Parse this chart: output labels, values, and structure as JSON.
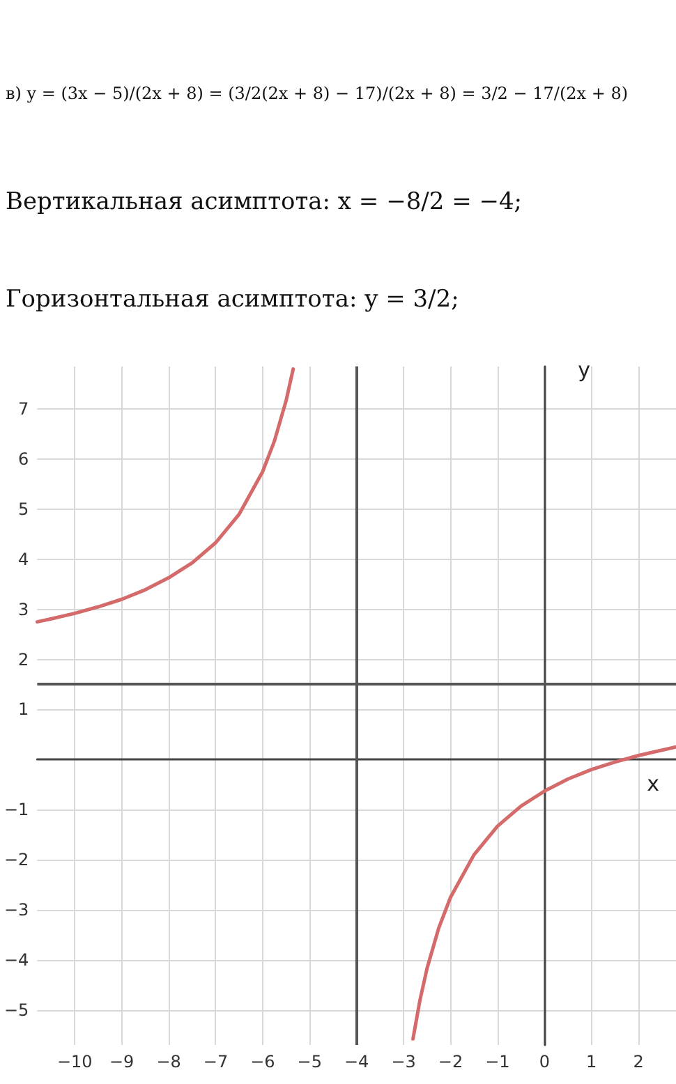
{
  "chart_data": {
    "type": "line",
    "xlabel": "x",
    "ylabel": "y",
    "annotations": [
      "в) y = (3x − 5)/(2x + 8) = (3/2(2x + 8) − 17)/(2x + 8) = 3/2 − 17/(2x + 8)",
      "Вертикальная асимптота: x = −8/2 = −4;",
      "Горизонтальная асимптота: y = 3/2;"
    ],
    "series": [
      {
        "color": "#d46a6a",
        "x": [
          -10.8,
          -10.5,
          -10,
          -9.5,
          -9,
          -8.5,
          -8,
          -7.5,
          -7,
          -6.5,
          -6,
          -5.75,
          -5.5,
          -5.35
        ],
        "values": [
          2.75,
          2.81,
          2.92,
          3.05,
          3.2,
          3.39,
          3.63,
          3.93,
          4.33,
          4.9,
          5.75,
          6.36,
          7.17,
          7.8
        ]
      },
      {
        "color": "#d46a6a",
        "x": [
          -2.8,
          -2.65,
          -2.5,
          -2.25,
          -2,
          -1.5,
          -1,
          -0.5,
          0,
          0.5,
          1,
          1.5,
          2,
          2.8
        ],
        "values": [
          -5.58,
          -4.8,
          -4.17,
          -3.36,
          -2.75,
          -1.9,
          -1.33,
          -0.93,
          -0.63,
          -0.39,
          -0.2,
          -0.05,
          0.08,
          0.25
        ]
      }
    ],
    "xlim": [
      -10.8,
      2.8
    ],
    "ylim": [
      -5.7,
      7.85
    ],
    "xticks": [
      -10,
      -9,
      -8,
      -7,
      -6,
      -5,
      -4,
      -3,
      -2,
      -1,
      0,
      1,
      2
    ],
    "yticks": [
      -5,
      -4,
      -3,
      -2,
      -1,
      1,
      2,
      3,
      4,
      5,
      6,
      7
    ],
    "ref_lines": [
      {
        "axis": "x",
        "value": -4,
        "color": "#555555"
      },
      {
        "axis": "y",
        "value": 1.5,
        "color": "#555555"
      }
    ],
    "grid": true,
    "marker": "none",
    "line_style": "solid"
  }
}
